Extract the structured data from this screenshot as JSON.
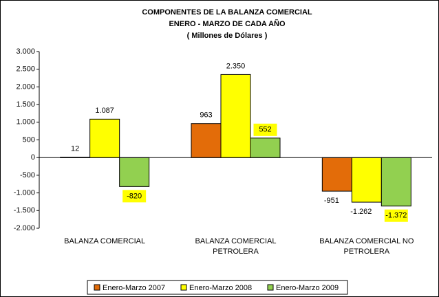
{
  "chart_data": {
    "type": "bar",
    "title": [
      "COMPONENTES DE LA BALANZA COMERCIAL",
      "ENERO  - MARZO DE CADA AÑO",
      "( Millones de Dólares )"
    ],
    "categories": [
      "BALANZA COMERCIAL",
      "BALANZA COMERCIAL PETROLERA",
      "BALANZA COMERCIAL NO PETROLERA"
    ],
    "series": [
      {
        "name": "Enero-Marzo 2007",
        "color": "#e36c09",
        "values": [
          12,
          963,
          -951
        ],
        "value_labels": [
          "12",
          "963",
          "-951"
        ]
      },
      {
        "name": "Enero-Marzo 2008",
        "color": "#ffff00",
        "values": [
          1087,
          2350,
          -1262
        ],
        "value_labels": [
          "1.087",
          "2.350",
          "-1.262"
        ]
      },
      {
        "name": "Enero-Marzo 2009",
        "color": "#92d050",
        "values": [
          -820,
          552,
          -1372
        ],
        "value_labels": [
          "-820",
          "552",
          "-1.372"
        ],
        "label_background": "#ffff00"
      }
    ],
    "ylim": [
      -2000,
      3000
    ],
    "yticks": [
      {
        "value": -2000,
        "label": "-2.000"
      },
      {
        "value": -1500,
        "label": "-1.500"
      },
      {
        "value": -1000,
        "label": "-1.000"
      },
      -500,
      0,
      500,
      {
        "value": 1000,
        "label": "1.000"
      },
      {
        "value": 1500,
        "label": "1.500"
      },
      {
        "value": 2000,
        "label": "2.000"
      },
      {
        "value": 2500,
        "label": "2.500"
      },
      {
        "value": 3000,
        "label": "3.000"
      }
    ],
    "legend": "bottom"
  }
}
